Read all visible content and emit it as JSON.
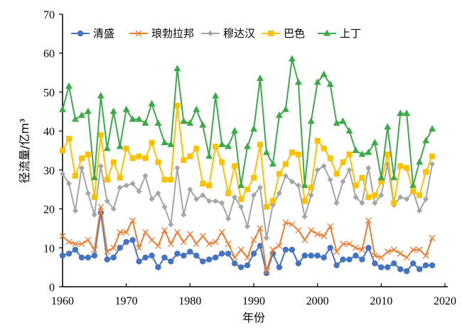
{
  "chart_data": {
    "type": "line",
    "title": "",
    "xlabel": "年份",
    "ylabel": "径流量/亿m³",
    "xlim": [
      1960,
      2020
    ],
    "ylim": [
      0,
      70
    ],
    "xticks": [
      "1960",
      "1970",
      "1980",
      "1990",
      "2000",
      "2010",
      "2020"
    ],
    "yticks": [
      "0",
      "10",
      "20",
      "30",
      "40",
      "50",
      "60",
      "70"
    ],
    "grid": false,
    "legend_position": "top",
    "x": [
      1960,
      1961,
      1962,
      1963,
      1964,
      1965,
      1966,
      1967,
      1968,
      1969,
      1970,
      1971,
      1972,
      1973,
      1974,
      1975,
      1976,
      1977,
      1978,
      1979,
      1980,
      1981,
      1982,
      1983,
      1984,
      1985,
      1986,
      1987,
      1988,
      1989,
      1990,
      1991,
      1992,
      1993,
      1994,
      1995,
      1996,
      1997,
      1998,
      1999,
      2000,
      2001,
      2002,
      2003,
      2004,
      2005,
      2006,
      2007,
      2008,
      2009,
      2010,
      2011,
      2012,
      2013,
      2014,
      2015,
      2016,
      2017,
      2018
    ],
    "series": [
      {
        "name": "清盛",
        "color": "#4472c4",
        "marker": "circle",
        "values": [
          8,
          8.5,
          9.5,
          7.5,
          7.5,
          8,
          19,
          7,
          7.5,
          10,
          11.5,
          12,
          6.5,
          7.5,
          8,
          5,
          7.5,
          6.5,
          8.5,
          8,
          9,
          8,
          6.5,
          7,
          7.5,
          8.5,
          8.5,
          6,
          5,
          5.5,
          8.5,
          10.5,
          3.5,
          8.5,
          5,
          9.5,
          9.5,
          6,
          8,
          8,
          8,
          7.5,
          10,
          5.5,
          7,
          7,
          8,
          7,
          10,
          6,
          5,
          5,
          6,
          4.5,
          4,
          6,
          4.5,
          5.5,
          5.5
        ]
      },
      {
        "name": "琅勃拉邦",
        "color": "#ed7d31",
        "marker": "x",
        "values": [
          13,
          11.5,
          11,
          11,
          12,
          9.5,
          20.5,
          9,
          10,
          14,
          14,
          17,
          10,
          14,
          12,
          10.5,
          14.5,
          11,
          14,
          11.5,
          13.5,
          11,
          13,
          11,
          11.5,
          14,
          11,
          7.5,
          9.5,
          7.5,
          12,
          15,
          4,
          9.5,
          10.5,
          16.5,
          16,
          14.5,
          12,
          14.5,
          13.5,
          13,
          15.5,
          9,
          11,
          11,
          10,
          9.5,
          17,
          8,
          7.5,
          9,
          9.5,
          8.5,
          7.5,
          9.5,
          9.5,
          8,
          12.5
        ]
      },
      {
        "name": "穆达汉",
        "color": "#a5a5a5",
        "marker": "diamond",
        "values": [
          29,
          26.5,
          19.5,
          30.5,
          24,
          18.5,
          31,
          22,
          20,
          25.5,
          26,
          26.5,
          24.5,
          28.5,
          22.5,
          24,
          20.5,
          16,
          30.5,
          18.5,
          25,
          22.5,
          23.5,
          22,
          22,
          21.5,
          17.5,
          23,
          20.5,
          15.5,
          23.5,
          25.5,
          12.5,
          21,
          24,
          28.5,
          27,
          26,
          18,
          23.5,
          30,
          31,
          27.5,
          21.5,
          27,
          30,
          23,
          21.5,
          30.5,
          21.5,
          23.5,
          31.5,
          21,
          23,
          22.5,
          24.5,
          19.5,
          22.5,
          31.5
        ]
      },
      {
        "name": "巴色",
        "color": "#ffc000",
        "marker": "square",
        "values": [
          35,
          38,
          28.5,
          33,
          34,
          23,
          39,
          27.5,
          32,
          28,
          35.5,
          33,
          33.5,
          33,
          37,
          32,
          27.5,
          27.5,
          46.5,
          32.5,
          33.5,
          35.5,
          26.5,
          26,
          36,
          32,
          24,
          31,
          22.5,
          25,
          28,
          36.5,
          20.5,
          22,
          29,
          31.5,
          34.5,
          34,
          22,
          25.5,
          37.5,
          35.5,
          33,
          29,
          32,
          34,
          26,
          28,
          23,
          23.5,
          27,
          34,
          21.5,
          31,
          30.5,
          24.5,
          23.5,
          29.5,
          33.5
        ]
      },
      {
        "name": "上丁",
        "color": "#3daa4a",
        "marker": "triangle",
        "values": [
          45.5,
          51.5,
          43,
          44,
          45,
          28,
          49,
          35.5,
          45,
          36,
          45.5,
          43,
          43,
          42,
          47,
          42,
          37,
          36.5,
          56,
          42.5,
          42,
          45.5,
          41.5,
          33.5,
          49,
          36.5,
          36,
          40,
          26,
          36,
          40.5,
          53.5,
          34.5,
          31.5,
          44,
          45.5,
          58.5,
          52.5,
          26,
          42.5,
          52.5,
          54.5,
          52,
          42,
          42.5,
          40,
          35,
          34,
          34.5,
          37,
          28,
          41,
          28,
          44.5,
          44.5,
          26,
          32,
          37.5,
          40.5
        ]
      }
    ]
  }
}
